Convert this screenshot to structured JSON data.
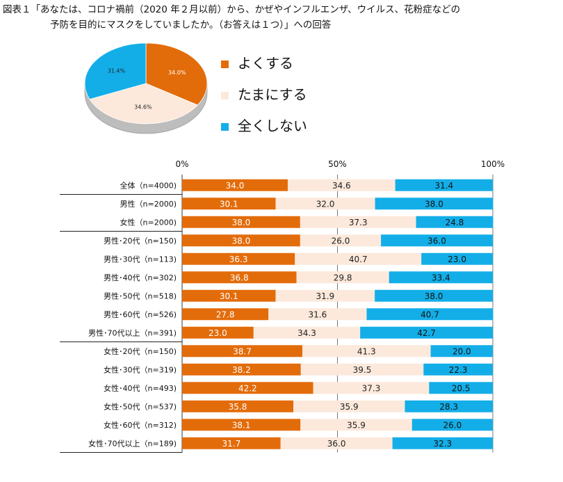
{
  "title": {
    "line1": "図表１「あなたは、コロナ禍前（2020 年２月以前）から、かぜやインフルエンザ、ウイルス、花粉症などの",
    "line2": "予防を目的にマスクをしていましたか。（お答えは１つ）」への回答"
  },
  "legend": [
    {
      "label": "よくする",
      "color": "#e36c0a"
    },
    {
      "label": "たまにする",
      "color": "#fce9dc"
    },
    {
      "label": "全くしない",
      "color": "#13aee8"
    }
  ],
  "chart_data": [
    {
      "type": "pie",
      "labels": [
        "よくする",
        "たまにする",
        "全くしない"
      ],
      "values": [
        34.0,
        34.6,
        31.4
      ],
      "value_labels": [
        "34.0%",
        "34.6%",
        "31.4%"
      ]
    },
    {
      "type": "bar",
      "orientation": "horizontal",
      "stacked": true,
      "x_ticks": [
        "0%",
        "50%",
        "100%"
      ],
      "xlim": [
        0,
        100
      ],
      "categories": [
        "全体（n=4000)",
        "男性（n=2000)",
        "女性（n=2000)",
        "男性･20代（n=150)",
        "男性･30代（n=113)",
        "男性･40代（n=302)",
        "男性･50代（n=518)",
        "男性･60代（n=526)",
        "男性･70代以上（n=391)",
        "女性･20代（n=150)",
        "女性･30代（n=319)",
        "女性･40代（n=493)",
        "女性･50代（n=537)",
        "女性･60代（n=312)",
        "女性･70代以上（n=189)"
      ],
      "series": [
        {
          "name": "よくする",
          "values": [
            "34.0",
            "30.1",
            "38.0",
            "38.0",
            "36.3",
            "36.8",
            "30.1",
            "27.8",
            "23.0",
            "38.7",
            "38.2",
            "42.2",
            "35.8",
            "38.1",
            "31.7"
          ]
        },
        {
          "name": "たまにする",
          "values": [
            "34.6",
            "32.0",
            "37.3",
            "26.0",
            "40.7",
            "29.8",
            "31.9",
            "31.6",
            "34.3",
            "41.3",
            "39.5",
            "37.3",
            "35.9",
            "35.9",
            "36.0"
          ]
        },
        {
          "name": "全くしない",
          "values": [
            "31.4",
            "38.0",
            "24.8",
            "36.0",
            "23.0",
            "33.4",
            "38.0",
            "40.7",
            "42.7",
            "20.0",
            "22.3",
            "20.5",
            "28.3",
            "26.0",
            "32.3"
          ]
        }
      ],
      "group_breaks_after": [
        0,
        2,
        8
      ]
    }
  ]
}
